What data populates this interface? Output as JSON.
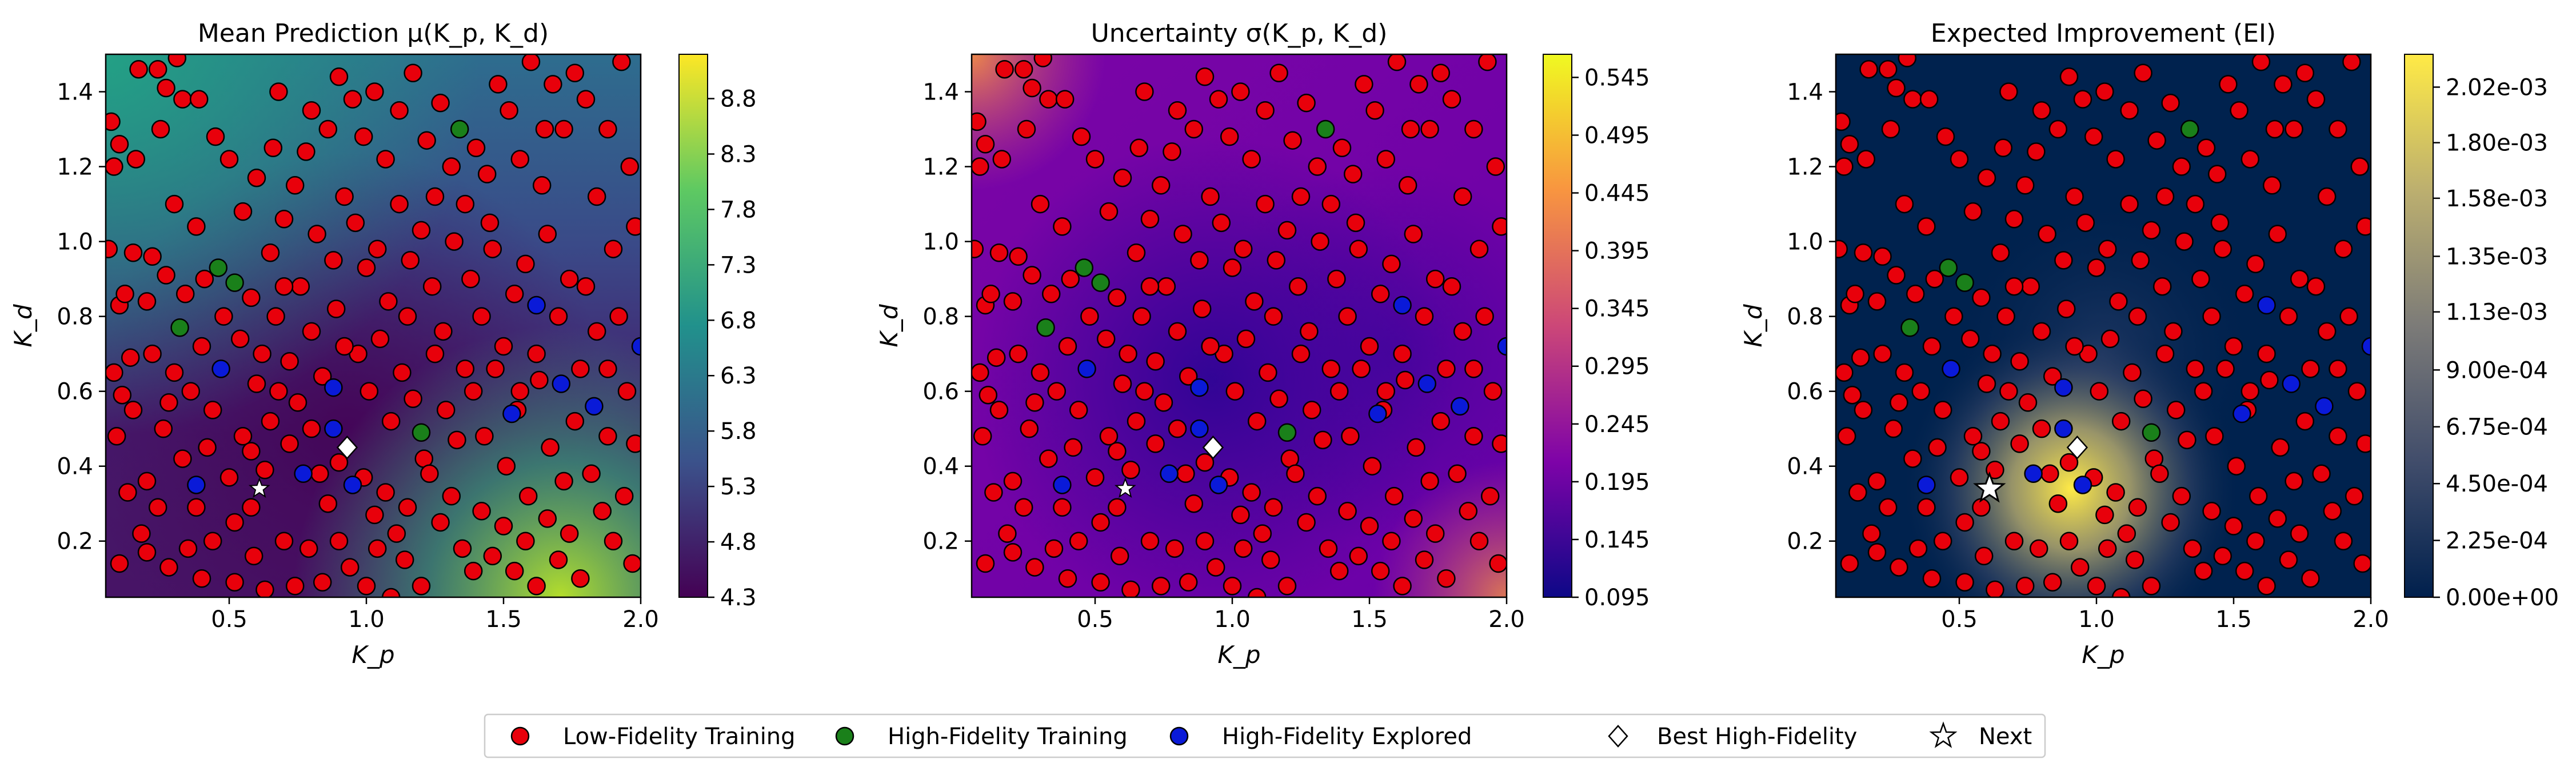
{
  "colors": {
    "low_fidelity": "#e8000b",
    "high_fidelity_training": "#1a801a",
    "high_fidelity_explored": "#0a1ad8",
    "best_marker": "#ffffff",
    "next_marker": "#ffffff"
  },
  "legend": {
    "placement": "bottom-center",
    "items": [
      {
        "label": "Low-Fidelity Training",
        "marker": "circle",
        "color": "#e8000b"
      },
      {
        "label": "High-Fidelity Training",
        "marker": "circle",
        "color": "#1a801a"
      },
      {
        "label": "High-Fidelity Explored",
        "marker": "circle",
        "color": "#0a1ad8"
      },
      {
        "label": "Best High-Fidelity",
        "marker": "diamond",
        "color": "#ffffff"
      },
      {
        "label": "Next",
        "marker": "star",
        "color": "#ffffff"
      }
    ]
  },
  "chart_data": [
    {
      "type": "heatmap",
      "title": "Mean Prediction μ(K_p, K_d)",
      "xlabel": "K_p",
      "ylabel": "K_d",
      "xlim": [
        0.05,
        2.0
      ],
      "ylim": [
        0.05,
        1.5
      ],
      "xticks": [
        "0.5",
        "1.0",
        "1.5",
        "2.0"
      ],
      "yticks": [
        "0.2",
        "0.4",
        "0.6",
        "0.8",
        "1.0",
        "1.2",
        "1.4"
      ],
      "colorbar": {
        "colormap": "viridis",
        "min": 4.3,
        "max": 9.2,
        "ticks": [
          "4.3",
          "4.8",
          "5.3",
          "5.8",
          "6.3",
          "6.8",
          "7.3",
          "7.8",
          "8.3",
          "8.8"
        ]
      }
    },
    {
      "type": "heatmap",
      "title": "Uncertainty σ(K_p, K_d)",
      "xlabel": "K_p",
      "ylabel": "K_d",
      "xlim": [
        0.05,
        2.0
      ],
      "ylim": [
        0.05,
        1.5
      ],
      "xticks": [
        "0.5",
        "1.0",
        "1.5",
        "2.0"
      ],
      "yticks": [
        "0.2",
        "0.4",
        "0.6",
        "0.8",
        "1.0",
        "1.2",
        "1.4"
      ],
      "colorbar": {
        "colormap": "plasma",
        "min": 0.095,
        "max": 0.565,
        "ticks": [
          "0.095",
          "0.145",
          "0.195",
          "0.245",
          "0.295",
          "0.345",
          "0.395",
          "0.445",
          "0.495",
          "0.545"
        ]
      }
    },
    {
      "type": "heatmap",
      "title": "Expected Improvement (EI)",
      "xlabel": "K_p",
      "ylabel": "K_d",
      "xlim": [
        0.05,
        2.0
      ],
      "ylim": [
        0.05,
        1.5
      ],
      "xticks": [
        "0.5",
        "1.0",
        "1.5",
        "2.0"
      ],
      "yticks": [
        "0.2",
        "0.4",
        "0.6",
        "0.8",
        "1.0",
        "1.2",
        "1.4"
      ],
      "colorbar": {
        "colormap": "cividis",
        "min": 0,
        "max": 0.00215,
        "ticks": [
          "0.00e+00",
          "2.25e-04",
          "4.50e-04",
          "6.75e-04",
          "9.00e-04",
          "1.13e-03",
          "1.35e-03",
          "1.58e-03",
          "1.80e-03",
          "2.02e-03"
        ]
      }
    }
  ],
  "points": {
    "high_fidelity_training": [
      [
        0.46,
        0.93
      ],
      [
        0.52,
        0.89
      ],
      [
        0.32,
        0.77
      ],
      [
        1.2,
        0.49
      ],
      [
        1.34,
        1.3
      ]
    ],
    "high_fidelity_explored": [
      [
        0.38,
        0.35
      ],
      [
        0.47,
        0.66
      ],
      [
        0.88,
        0.61
      ],
      [
        0.88,
        0.5
      ],
      [
        0.77,
        0.38
      ],
      [
        0.95,
        0.35
      ],
      [
        1.62,
        0.83
      ],
      [
        1.71,
        0.62
      ],
      [
        1.53,
        0.54
      ],
      [
        1.83,
        0.56
      ],
      [
        2.0,
        0.72
      ]
    ],
    "best_high_fidelity": [
      0.93,
      0.45
    ],
    "next": [
      0.61,
      0.34
    ],
    "low_fidelity_training": [
      [
        0.07,
        1.32
      ],
      [
        0.08,
        1.2
      ],
      [
        0.1,
        1.26
      ],
      [
        0.16,
        1.22
      ],
      [
        0.17,
        1.46
      ],
      [
        0.24,
        1.46
      ],
      [
        0.27,
        1.41
      ],
      [
        0.31,
        1.49
      ],
      [
        0.33,
        1.38
      ],
      [
        0.39,
        1.38
      ],
      [
        0.06,
        0.98
      ],
      [
        0.1,
        0.83
      ],
      [
        0.12,
        0.86
      ],
      [
        0.15,
        0.97
      ],
      [
        0.2,
        0.84
      ],
      [
        0.22,
        0.96
      ],
      [
        0.27,
        0.91
      ],
      [
        0.34,
        0.86
      ],
      [
        0.38,
        1.04
      ],
      [
        0.41,
        0.9
      ],
      [
        0.08,
        0.65
      ],
      [
        0.09,
        0.48
      ],
      [
        0.11,
        0.59
      ],
      [
        0.13,
        0.33
      ],
      [
        0.14,
        0.69
      ],
      [
        0.18,
        0.22
      ],
      [
        0.2,
        0.36
      ],
      [
        0.24,
        0.29
      ],
      [
        0.26,
        0.5
      ],
      [
        0.3,
        0.65
      ],
      [
        0.33,
        0.42
      ],
      [
        0.36,
        0.6
      ],
      [
        0.38,
        0.29
      ],
      [
        0.42,
        0.45
      ],
      [
        0.44,
        0.55
      ],
      [
        0.5,
        0.37
      ],
      [
        0.52,
        0.25
      ],
      [
        0.55,
        0.48
      ],
      [
        0.58,
        0.29
      ],
      [
        0.63,
        0.39
      ],
      [
        0.1,
        0.14
      ],
      [
        0.2,
        0.17
      ],
      [
        0.28,
        0.13
      ],
      [
        0.35,
        0.18
      ],
      [
        0.4,
        0.1
      ],
      [
        0.44,
        0.2
      ],
      [
        0.52,
        0.09
      ],
      [
        0.59,
        0.16
      ],
      [
        0.63,
        0.07
      ],
      [
        0.7,
        0.2
      ],
      [
        0.5,
        1.22
      ],
      [
        0.55,
        1.08
      ],
      [
        0.6,
        1.17
      ],
      [
        0.66,
        1.25
      ],
      [
        0.7,
        1.06
      ],
      [
        0.74,
        1.15
      ],
      [
        0.78,
        1.24
      ],
      [
        0.82,
        1.02
      ],
      [
        0.86,
        1.3
      ],
      [
        0.92,
        1.12
      ],
      [
        0.48,
        0.8
      ],
      [
        0.54,
        0.74
      ],
      [
        0.58,
        0.85
      ],
      [
        0.62,
        0.7
      ],
      [
        0.67,
        0.8
      ],
      [
        0.72,
        0.68
      ],
      [
        0.76,
        0.88
      ],
      [
        0.8,
        0.76
      ],
      [
        0.84,
        0.64
      ],
      [
        0.89,
        0.82
      ],
      [
        0.58,
        0.44
      ],
      [
        0.6,
        0.62
      ],
      [
        0.65,
        0.52
      ],
      [
        0.68,
        0.6
      ],
      [
        0.72,
        0.46
      ],
      [
        0.75,
        0.57
      ],
      [
        0.8,
        0.5
      ],
      [
        0.83,
        0.38
      ],
      [
        0.86,
        0.3
      ],
      [
        0.9,
        0.41
      ],
      [
        0.74,
        0.08
      ],
      [
        0.79,
        0.18
      ],
      [
        0.84,
        0.09
      ],
      [
        0.9,
        0.2
      ],
      [
        0.94,
        0.13
      ],
      [
        1.0,
        0.08
      ],
      [
        1.04,
        0.18
      ],
      [
        1.09,
        0.05
      ],
      [
        1.14,
        0.15
      ],
      [
        1.2,
        0.08
      ],
      [
        0.9,
        1.44
      ],
      [
        0.95,
        1.38
      ],
      [
        0.99,
        1.28
      ],
      [
        1.03,
        1.4
      ],
      [
        1.07,
        1.22
      ],
      [
        1.12,
        1.35
      ],
      [
        1.17,
        1.45
      ],
      [
        1.22,
        1.27
      ],
      [
        1.27,
        1.37
      ],
      [
        1.31,
        1.2
      ],
      [
        0.96,
        1.05
      ],
      [
        1.0,
        0.93
      ],
      [
        1.04,
        0.98
      ],
      [
        1.08,
        0.84
      ],
      [
        1.12,
        1.1
      ],
      [
        1.16,
        0.95
      ],
      [
        1.2,
        1.03
      ],
      [
        1.24,
        0.88
      ],
      [
        1.28,
        0.76
      ],
      [
        1.32,
        1.0
      ],
      [
        0.97,
        0.7
      ],
      [
        1.01,
        0.6
      ],
      [
        1.05,
        0.74
      ],
      [
        1.09,
        0.52
      ],
      [
        1.13,
        0.65
      ],
      [
        1.17,
        0.58
      ],
      [
        1.21,
        0.42
      ],
      [
        1.25,
        0.7
      ],
      [
        1.29,
        0.55
      ],
      [
        1.33,
        0.47
      ],
      [
        0.99,
        0.37
      ],
      [
        1.03,
        0.27
      ],
      [
        1.07,
        0.33
      ],
      [
        1.11,
        0.22
      ],
      [
        1.15,
        0.29
      ],
      [
        1.23,
        0.38
      ],
      [
        1.27,
        0.25
      ],
      [
        1.31,
        0.32
      ],
      [
        1.35,
        0.18
      ],
      [
        1.39,
        0.12
      ],
      [
        1.36,
        1.1
      ],
      [
        1.4,
        1.25
      ],
      [
        1.44,
        1.18
      ],
      [
        1.48,
        1.42
      ],
      [
        1.52,
        1.35
      ],
      [
        1.56,
        1.22
      ],
      [
        1.6,
        1.48
      ],
      [
        1.64,
        1.15
      ],
      [
        1.68,
        1.42
      ],
      [
        1.72,
        1.3
      ],
      [
        1.38,
        0.9
      ],
      [
        1.42,
        0.8
      ],
      [
        1.46,
        0.98
      ],
      [
        1.5,
        0.72
      ],
      [
        1.54,
        0.86
      ],
      [
        1.58,
        0.94
      ],
      [
        1.62,
        0.7
      ],
      [
        1.66,
        1.02
      ],
      [
        1.7,
        0.8
      ],
      [
        1.74,
        0.9
      ],
      [
        1.39,
        0.6
      ],
      [
        1.43,
        0.48
      ],
      [
        1.47,
        0.66
      ],
      [
        1.51,
        0.4
      ],
      [
        1.55,
        0.55
      ],
      [
        1.59,
        0.32
      ],
      [
        1.63,
        0.63
      ],
      [
        1.67,
        0.45
      ],
      [
        1.72,
        0.36
      ],
      [
        1.76,
        0.52
      ],
      [
        1.42,
        0.28
      ],
      [
        1.46,
        0.16
      ],
      [
        1.5,
        0.24
      ],
      [
        1.54,
        0.12
      ],
      [
        1.58,
        0.2
      ],
      [
        1.62,
        0.08
      ],
      [
        1.66,
        0.26
      ],
      [
        1.7,
        0.15
      ],
      [
        1.74,
        0.22
      ],
      [
        1.78,
        0.1
      ],
      [
        1.76,
        1.45
      ],
      [
        1.8,
        1.38
      ],
      [
        1.84,
        1.12
      ],
      [
        1.88,
        1.3
      ],
      [
        1.9,
        0.98
      ],
      [
        1.93,
        1.48
      ],
      [
        1.96,
        1.2
      ],
      [
        1.98,
        1.04
      ],
      [
        1.8,
        0.88
      ],
      [
        1.84,
        0.76
      ],
      [
        1.88,
        0.66
      ],
      [
        1.92,
        0.8
      ],
      [
        1.95,
        0.6
      ],
      [
        1.98,
        0.46
      ],
      [
        1.82,
        0.38
      ],
      [
        1.86,
        0.28
      ],
      [
        1.9,
        0.2
      ],
      [
        1.94,
        0.32
      ],
      [
        1.97,
        0.14
      ],
      [
        1.88,
        0.48
      ],
      [
        0.25,
        1.3
      ],
      [
        0.45,
        1.28
      ],
      [
        0.68,
        1.4
      ],
      [
        0.8,
        1.35
      ],
      [
        0.3,
        1.1
      ],
      [
        0.65,
        0.97
      ],
      [
        0.88,
        0.95
      ],
      [
        1.45,
        1.05
      ],
      [
        1.65,
        1.3
      ],
      [
        1.25,
        1.12
      ],
      [
        0.22,
        0.7
      ],
      [
        0.4,
        0.72
      ],
      [
        0.7,
        0.88
      ],
      [
        0.92,
        0.72
      ],
      [
        1.15,
        0.8
      ],
      [
        1.36,
        0.66
      ],
      [
        1.56,
        0.6
      ],
      [
        1.78,
        0.66
      ],
      [
        0.15,
        0.55
      ],
      [
        0.28,
        0.57
      ]
    ]
  }
}
